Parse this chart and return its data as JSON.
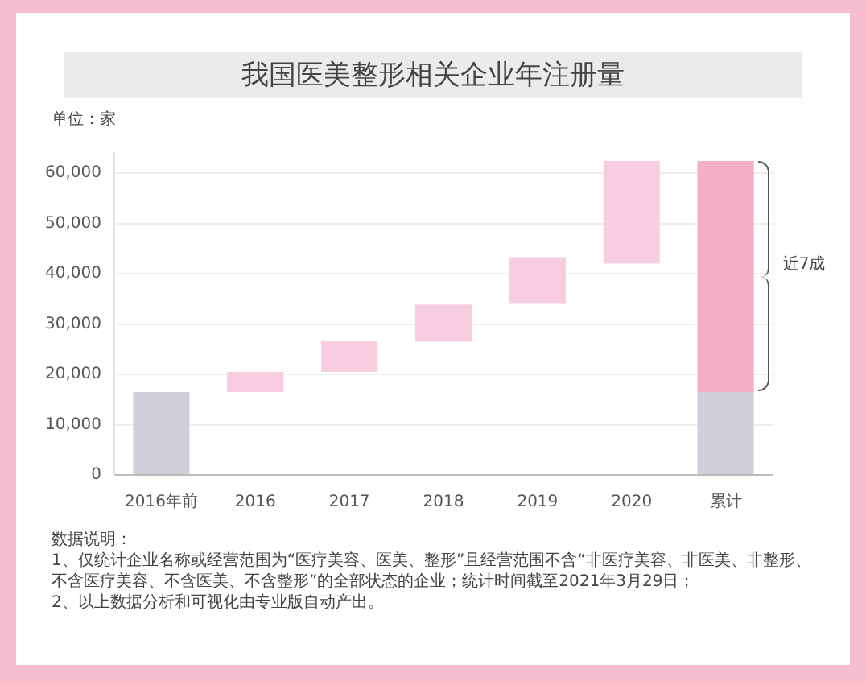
{
  "chart_data": {
    "type": "bar",
    "title": "我国医美整形相关企业年注册量",
    "ylabel": "单位：家",
    "categories": [
      "2016年前",
      "2016",
      "2017",
      "2018",
      "2019",
      "2020",
      "累计"
    ],
    "series": [
      {
        "color": "#cfd0d9",
        "values": [
          16500,
          null,
          null,
          null,
          null,
          null,
          16500
        ],
        "base": [
          0,
          null,
          null,
          null,
          null,
          null,
          0
        ]
      },
      {
        "color": "#f9cde0",
        "colors": [
          null,
          "#f9cde0",
          "#f9cde0",
          "#f9cde0",
          "#f9cde0",
          "#f9cde0",
          "#f6aec8"
        ],
        "values": [
          null,
          4000,
          6100,
          7400,
          9300,
          20400,
          45900
        ],
        "base": [
          null,
          16500,
          20500,
          26500,
          34000,
          42000,
          16500
        ]
      }
    ],
    "ylim": [
      0,
      64000
    ],
    "yticks": [
      0,
      {
        "value": 10000,
        "label": "10,000"
      },
      {
        "value": 20000,
        "label": "20,000"
      },
      {
        "value": 30000,
        "label": "30,000"
      },
      {
        "value": 40000,
        "label": "40,000"
      },
      {
        "value": 50000,
        "label": "50,000"
      },
      {
        "value": 60000,
        "label": "60,000"
      }
    ],
    "grid": "y",
    "legend": false,
    "annotations": [
      "近7成",
      "数据说明：",
      "1、仅统计企业名称或经营范围为“医疗美容、医美、整形”且经营范围不含“非医疗美容、非医美、非整形、不含医疗美容、不含医美、不含整形”的全部状态的企业；统计时间截至2021年3月29日；",
      "2、以上数据分析和可视化由专业版自动产出。"
    ]
  }
}
